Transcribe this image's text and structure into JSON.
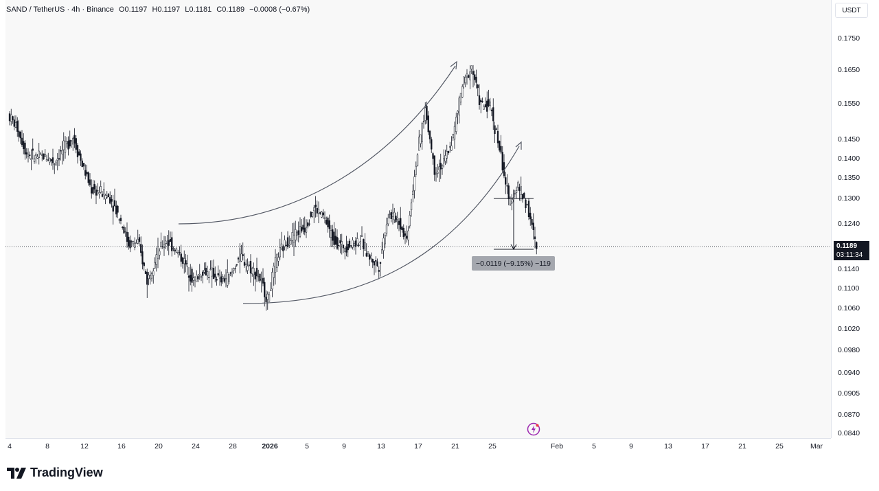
{
  "legend": {
    "symbol": "SAND / TetherUS · 4h · Binance",
    "open": "O0.1197",
    "high": "H0.1197",
    "low": "L0.1181",
    "close": "C0.1189",
    "change": "−0.0008 (−0.67%)"
  },
  "price_axis": {
    "currency": "USDT",
    "ticks": [
      "0.1750",
      "0.1650",
      "0.1550",
      "0.1450",
      "0.1400",
      "0.1350",
      "0.1300",
      "0.1240",
      "0.1140",
      "0.1100",
      "0.1060",
      "0.1020",
      "0.0980",
      "0.0940",
      "0.0905",
      "0.0870",
      "0.0840"
    ],
    "last_price": "0.1189",
    "countdown": "03:11:34"
  },
  "time_axis": {
    "ticks": [
      "4",
      "8",
      "12",
      "16",
      "20",
      "24",
      "28",
      "2026",
      "5",
      "9",
      "13",
      "17",
      "21",
      "25",
      "Feb",
      "5",
      "9",
      "13",
      "17",
      "21",
      "25",
      "Mar"
    ]
  },
  "measure": {
    "label": "−0.0119 (−9.15%) −119"
  },
  "brand": {
    "name": "TradingView"
  },
  "colors": {
    "candle_up": "#ffffff",
    "candle_down": "#131722",
    "wick": "#131722",
    "background": "#f8f8f8",
    "curve": "#555a66"
  },
  "chart_data": {
    "type": "candlestick",
    "symbol": "SAND / TetherUS",
    "interval": "4h",
    "exchange": "Binance",
    "scale": "log",
    "ylim": [
      0.0835,
      0.181
    ],
    "last_close": 0.1189,
    "anchors": [
      {
        "date": "Dec 4",
        "price": 0.1535
      },
      {
        "date": "Dec 5",
        "price": 0.1495
      },
      {
        "date": "Dec 6",
        "price": 0.1425
      },
      {
        "date": "Dec 7",
        "price": 0.1415
      },
      {
        "date": "Dec 8",
        "price": 0.1418
      },
      {
        "date": "Dec 9",
        "price": 0.1402
      },
      {
        "date": "Dec 10",
        "price": 0.144
      },
      {
        "date": "Dec 11",
        "price": 0.147
      },
      {
        "date": "Dec 12",
        "price": 0.1395
      },
      {
        "date": "Dec 13",
        "price": 0.133
      },
      {
        "date": "Dec 14",
        "price": 0.1325
      },
      {
        "date": "Dec 15",
        "price": 0.131
      },
      {
        "date": "Dec 16",
        "price": 0.1265
      },
      {
        "date": "Dec 17",
        "price": 0.12
      },
      {
        "date": "Dec 18",
        "price": 0.1205
      },
      {
        "date": "Dec 19",
        "price": 0.112
      },
      {
        "date": "Dec 20",
        "price": 0.1175
      },
      {
        "date": "Dec 21",
        "price": 0.121
      },
      {
        "date": "Dec 22",
        "price": 0.119
      },
      {
        "date": "Dec 23",
        "price": 0.116
      },
      {
        "date": "Dec 24",
        "price": 0.112
      },
      {
        "date": "Dec 25",
        "price": 0.114
      },
      {
        "date": "Dec 26",
        "price": 0.1135
      },
      {
        "date": "Dec 27",
        "price": 0.112
      },
      {
        "date": "Dec 28",
        "price": 0.113
      },
      {
        "date": "Dec 29",
        "price": 0.1175
      },
      {
        "date": "Dec 30",
        "price": 0.115
      },
      {
        "date": "Dec 31",
        "price": 0.113
      },
      {
        "date": "Jan 1",
        "price": 0.108
      },
      {
        "date": "Jan 2",
        "price": 0.117
      },
      {
        "date": "Jan 3",
        "price": 0.1205
      },
      {
        "date": "Jan 4",
        "price": 0.1225
      },
      {
        "date": "Jan 5",
        "price": 0.124
      },
      {
        "date": "Jan 6",
        "price": 0.1285
      },
      {
        "date": "Jan 7",
        "price": 0.1265
      },
      {
        "date": "Jan 8",
        "price": 0.1215
      },
      {
        "date": "Jan 9",
        "price": 0.1195
      },
      {
        "date": "Jan 10",
        "price": 0.12
      },
      {
        "date": "Jan 11",
        "price": 0.121
      },
      {
        "date": "Jan 12",
        "price": 0.117
      },
      {
        "date": "Jan 13",
        "price": 0.115
      },
      {
        "date": "Jan 14",
        "price": 0.127
      },
      {
        "date": "Jan 15",
        "price": 0.126
      },
      {
        "date": "Jan 16",
        "price": 0.121
      },
      {
        "date": "Jan 17",
        "price": 0.14
      },
      {
        "date": "Jan 18",
        "price": 0.155
      },
      {
        "date": "Jan 19",
        "price": 0.138
      },
      {
        "date": "Jan 20",
        "price": 0.14
      },
      {
        "date": "Jan 21",
        "price": 0.147
      },
      {
        "date": "Jan 22",
        "price": 0.162
      },
      {
        "date": "Jan 23",
        "price": 0.168
      },
      {
        "date": "Jan 24",
        "price": 0.156
      },
      {
        "date": "Jan 25",
        "price": 0.156
      },
      {
        "date": "Jan 26",
        "price": 0.144
      },
      {
        "date": "Jan 27",
        "price": 0.13
      },
      {
        "date": "Jan 28",
        "price": 0.134
      },
      {
        "date": "Jan 29",
        "price": 0.129
      },
      {
        "date": "Jan 30",
        "price": 0.1189
      }
    ]
  }
}
